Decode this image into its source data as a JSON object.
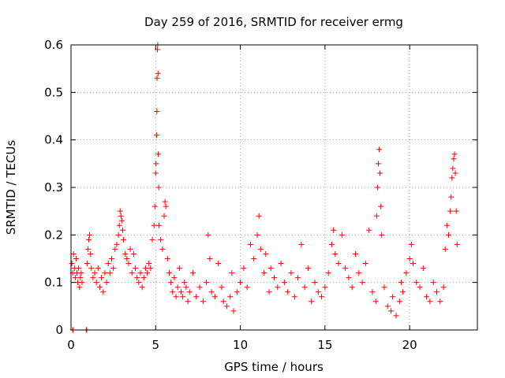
{
  "chart_data": {
    "type": "scatter",
    "title": "Day 259 of 2016, SRMTID for receiver ermg",
    "xlabel": "GPS time / hours",
    "ylabel": "SRMTID / TECUs",
    "xlim": [
      0,
      24
    ],
    "ylim": [
      0,
      0.6
    ],
    "x_ticks": [
      0,
      5,
      10,
      15,
      20
    ],
    "y_ticks": [
      0,
      0.1,
      0.2,
      0.3,
      0.4,
      0.5,
      0.6
    ],
    "x_tick_labels": [
      "0",
      "5",
      "10",
      "15",
      "20"
    ],
    "y_tick_labels": [
      "0",
      "0.1",
      "0.2",
      "0.3",
      "0.4",
      "0.5",
      "0.6"
    ],
    "grid": true,
    "marker": "plus",
    "color": "#ff0000",
    "series": [
      {
        "name": "SRMTID",
        "points": [
          [
            0.05,
            0.14
          ],
          [
            0.1,
            0.12
          ],
          [
            0.15,
            0.16
          ],
          [
            0.2,
            0.13
          ],
          [
            0.25,
            0.11
          ],
          [
            0.3,
            0.15
          ],
          [
            0.35,
            0.12
          ],
          [
            0.4,
            0.1
          ],
          [
            0.45,
            0.13
          ],
          [
            0.5,
            0.09
          ],
          [
            0.55,
            0.11
          ],
          [
            0.6,
            0.12
          ],
          [
            0.65,
            0.1
          ],
          [
            0.1,
            0.0
          ],
          [
            0.12,
            0.0
          ],
          [
            0.9,
            0.0
          ],
          [
            0.93,
            0.0
          ],
          [
            0.95,
            0.14
          ],
          [
            1.0,
            0.17
          ],
          [
            1.05,
            0.19
          ],
          [
            1.1,
            0.2
          ],
          [
            1.15,
            0.16
          ],
          [
            1.2,
            0.13
          ],
          [
            1.3,
            0.11
          ],
          [
            1.4,
            0.12
          ],
          [
            1.5,
            0.1
          ],
          [
            1.6,
            0.13
          ],
          [
            1.7,
            0.09
          ],
          [
            1.8,
            0.11
          ],
          [
            1.9,
            0.08
          ],
          [
            2.0,
            0.12
          ],
          [
            2.1,
            0.1
          ],
          [
            2.2,
            0.14
          ],
          [
            2.3,
            0.12
          ],
          [
            2.4,
            0.15
          ],
          [
            2.5,
            0.13
          ],
          [
            2.6,
            0.17
          ],
          [
            2.7,
            0.18
          ],
          [
            2.8,
            0.2
          ],
          [
            2.85,
            0.22
          ],
          [
            2.9,
            0.25
          ],
          [
            2.95,
            0.24
          ],
          [
            3.0,
            0.23
          ],
          [
            3.05,
            0.21
          ],
          [
            3.1,
            0.19
          ],
          [
            3.2,
            0.16
          ],
          [
            3.3,
            0.15
          ],
          [
            3.4,
            0.14
          ],
          [
            3.5,
            0.17
          ],
          [
            3.6,
            0.12
          ],
          [
            3.7,
            0.16
          ],
          [
            3.8,
            0.13
          ],
          [
            3.9,
            0.11
          ],
          [
            4.0,
            0.1
          ],
          [
            4.1,
            0.12
          ],
          [
            4.2,
            0.09
          ],
          [
            4.3,
            0.11
          ],
          [
            4.4,
            0.13
          ],
          [
            4.5,
            0.12
          ],
          [
            4.6,
            0.14
          ],
          [
            4.7,
            0.13
          ],
          [
            4.8,
            0.19
          ],
          [
            4.9,
            0.22
          ],
          [
            4.95,
            0.26
          ],
          [
            5.0,
            0.33
          ],
          [
            5.02,
            0.35
          ],
          [
            5.05,
            0.41
          ],
          [
            5.07,
            0.46
          ],
          [
            5.08,
            0.53
          ],
          [
            5.1,
            0.59
          ],
          [
            5.12,
            0.6
          ],
          [
            5.14,
            0.54
          ],
          [
            5.15,
            0.37
          ],
          [
            5.18,
            0.3
          ],
          [
            5.2,
            0.22
          ],
          [
            5.3,
            0.19
          ],
          [
            5.4,
            0.17
          ],
          [
            5.5,
            0.24
          ],
          [
            5.55,
            0.27
          ],
          [
            5.6,
            0.26
          ],
          [
            5.7,
            0.15
          ],
          [
            5.8,
            0.12
          ],
          [
            5.9,
            0.1
          ],
          [
            6.0,
            0.08
          ],
          [
            6.1,
            0.11
          ],
          [
            6.2,
            0.07
          ],
          [
            6.3,
            0.09
          ],
          [
            6.4,
            0.13
          ],
          [
            6.5,
            0.08
          ],
          [
            6.6,
            0.07
          ],
          [
            6.7,
            0.1
          ],
          [
            6.8,
            0.09
          ],
          [
            6.9,
            0.06
          ],
          [
            7.0,
            0.08
          ],
          [
            7.2,
            0.12
          ],
          [
            7.4,
            0.07
          ],
          [
            7.6,
            0.09
          ],
          [
            7.8,
            0.06
          ],
          [
            8.0,
            0.1
          ],
          [
            8.1,
            0.2
          ],
          [
            8.2,
            0.15
          ],
          [
            8.3,
            0.08
          ],
          [
            8.5,
            0.07
          ],
          [
            8.7,
            0.14
          ],
          [
            8.9,
            0.09
          ],
          [
            9.0,
            0.06
          ],
          [
            9.2,
            0.05
          ],
          [
            9.4,
            0.07
          ],
          [
            9.5,
            0.12
          ],
          [
            9.6,
            0.04
          ],
          [
            9.8,
            0.08
          ],
          [
            10.0,
            0.1
          ],
          [
            10.2,
            0.13
          ],
          [
            10.4,
            0.09
          ],
          [
            10.6,
            0.18
          ],
          [
            10.8,
            0.15
          ],
          [
            11.0,
            0.2
          ],
          [
            11.1,
            0.24
          ],
          [
            11.2,
            0.17
          ],
          [
            11.4,
            0.12
          ],
          [
            11.5,
            0.16
          ],
          [
            11.7,
            0.08
          ],
          [
            11.8,
            0.13
          ],
          [
            12.0,
            0.11
          ],
          [
            12.2,
            0.09
          ],
          [
            12.4,
            0.14
          ],
          [
            12.6,
            0.1
          ],
          [
            12.8,
            0.08
          ],
          [
            13.0,
            0.12
          ],
          [
            13.2,
            0.07
          ],
          [
            13.4,
            0.11
          ],
          [
            13.6,
            0.18
          ],
          [
            13.8,
            0.09
          ],
          [
            14.0,
            0.13
          ],
          [
            14.2,
            0.06
          ],
          [
            14.4,
            0.1
          ],
          [
            14.6,
            0.08
          ],
          [
            14.8,
            0.07
          ],
          [
            15.0,
            0.09
          ],
          [
            15.2,
            0.12
          ],
          [
            15.4,
            0.18
          ],
          [
            15.5,
            0.21
          ],
          [
            15.6,
            0.16
          ],
          [
            15.8,
            0.14
          ],
          [
            16.0,
            0.2
          ],
          [
            16.2,
            0.13
          ],
          [
            16.4,
            0.11
          ],
          [
            16.6,
            0.09
          ],
          [
            16.8,
            0.16
          ],
          [
            17.0,
            0.12
          ],
          [
            17.2,
            0.1
          ],
          [
            17.4,
            0.14
          ],
          [
            17.6,
            0.21
          ],
          [
            17.8,
            0.08
          ],
          [
            18.0,
            0.06
          ],
          [
            18.05,
            0.24
          ],
          [
            18.1,
            0.3
          ],
          [
            18.15,
            0.35
          ],
          [
            18.2,
            0.38
          ],
          [
            18.25,
            0.33
          ],
          [
            18.3,
            0.26
          ],
          [
            18.35,
            0.2
          ],
          [
            18.5,
            0.09
          ],
          [
            18.7,
            0.05
          ],
          [
            18.9,
            0.04
          ],
          [
            19.0,
            0.07
          ],
          [
            19.2,
            0.03
          ],
          [
            19.4,
            0.06
          ],
          [
            19.5,
            0.1
          ],
          [
            19.6,
            0.08
          ],
          [
            19.8,
            0.12
          ],
          [
            20.0,
            0.15
          ],
          [
            20.1,
            0.18
          ],
          [
            20.2,
            0.14
          ],
          [
            20.4,
            0.1
          ],
          [
            20.6,
            0.09
          ],
          [
            20.8,
            0.13
          ],
          [
            21.0,
            0.07
          ],
          [
            21.2,
            0.06
          ],
          [
            21.4,
            0.1
          ],
          [
            21.6,
            0.08
          ],
          [
            21.8,
            0.06
          ],
          [
            22.0,
            0.09
          ],
          [
            22.1,
            0.17
          ],
          [
            22.2,
            0.22
          ],
          [
            22.3,
            0.2
          ],
          [
            22.4,
            0.25
          ],
          [
            22.45,
            0.28
          ],
          [
            22.5,
            0.32
          ],
          [
            22.55,
            0.34
          ],
          [
            22.6,
            0.36
          ],
          [
            22.65,
            0.37
          ],
          [
            22.7,
            0.33
          ],
          [
            22.75,
            0.25
          ],
          [
            22.8,
            0.18
          ]
        ]
      }
    ]
  }
}
